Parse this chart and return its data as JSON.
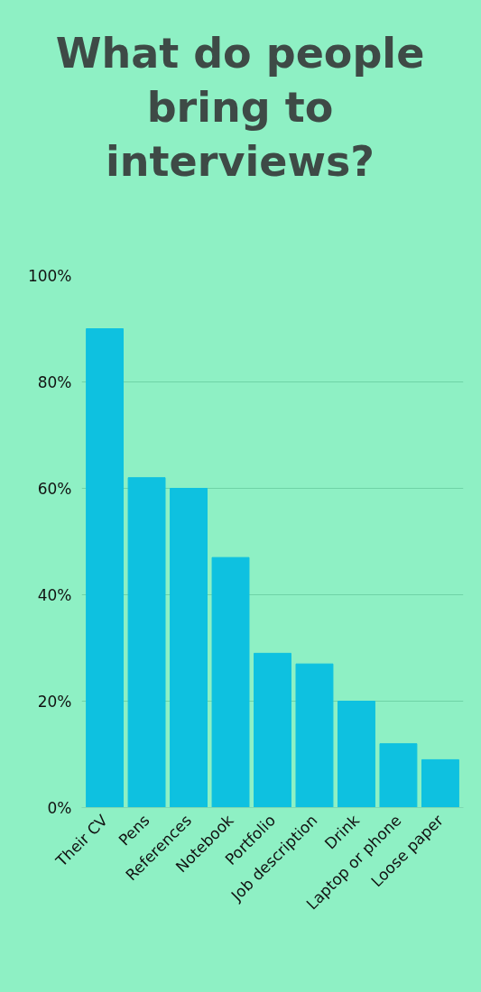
{
  "chart_data": {
    "type": "bar",
    "title": "What do people bring to interviews?",
    "categories": [
      "Their CV",
      "Pens",
      "References",
      "Notebook",
      "Portfolio",
      "Job description",
      "Drink",
      "Laptop or phone",
      "Loose paper"
    ],
    "values": [
      90,
      62,
      60,
      47,
      29,
      27,
      20,
      12,
      9
    ],
    "color": "#0ec1e0",
    "ylim": [
      0,
      100
    ],
    "yticks": [
      {
        "value": 0,
        "label": "0%"
      },
      {
        "value": 20,
        "label": "20%"
      },
      {
        "value": 40,
        "label": "40%"
      },
      {
        "value": 60,
        "label": "60%"
      },
      {
        "value": 80,
        "label": "80%"
      },
      {
        "value": 100,
        "label": "100%"
      }
    ],
    "grid": "y"
  }
}
